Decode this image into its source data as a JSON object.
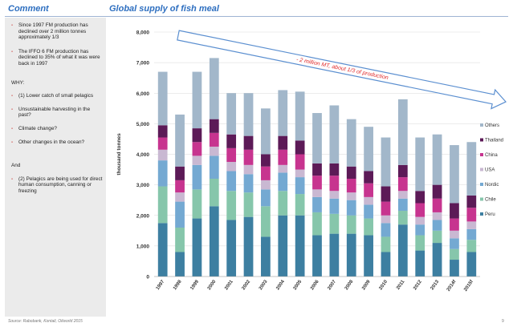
{
  "header": {
    "comment_title": "Comment",
    "chart_title": "Global supply of fish meal"
  },
  "sidebar": {
    "bullets": [
      {
        "text": "Since 1997 FM production has declined over 2 million tonnes approximately 1/3",
        "marker": "-"
      },
      {
        "text": "The IFFO 6 FM production has declined to 35% of what it was were back in 1997",
        "marker": "-"
      },
      {
        "text": "WHY:",
        "marker": ""
      },
      {
        "text": "(1) Lower catch of small pelagics",
        "marker": "-"
      },
      {
        "text": "Unsustainable harvesting in the past?",
        "marker": "-"
      },
      {
        "text": "Climate change?",
        "marker": "-"
      },
      {
        "text": "Other changes in the ocean?",
        "marker": "-"
      },
      {
        "text": "And",
        "marker": ""
      },
      {
        "text": "(2) Pelagics are being used for direct human consumption, canning or freezing",
        "marker": "-"
      }
    ]
  },
  "footer": {
    "source": "Source: Rabobank, Kontali, Oilworld 2015",
    "page": "9"
  },
  "chart_data": {
    "type": "bar",
    "stacked": true,
    "title": "Global supply of fish meal",
    "xlabel": "",
    "ylabel": "thousand tonnes",
    "ylim": [
      0,
      8000
    ],
    "yticks": [
      "0",
      "1,000",
      "2,000",
      "3,000",
      "4,000",
      "5,000",
      "6,000",
      "7,000",
      "8,000"
    ],
    "grid": true,
    "legend_position": "right",
    "categories": [
      "1997",
      "1998",
      "1999",
      "2000",
      "2001",
      "2002",
      "2003",
      "2004",
      "2005",
      "2006",
      "2007",
      "2008",
      "2009",
      "2010",
      "2011",
      "2012",
      "2013",
      "2014f",
      "2015f"
    ],
    "series": [
      {
        "name": "Peru",
        "color": "#3d7fa1",
        "values": [
          1750,
          800,
          1900,
          2300,
          1850,
          1950,
          1300,
          2000,
          2000,
          1350,
          1400,
          1400,
          1350,
          800,
          1700,
          850,
          1100,
          550,
          800
        ]
      },
      {
        "name": "Chile",
        "color": "#86c6ab",
        "values": [
          1200,
          800,
          950,
          900,
          950,
          800,
          1000,
          800,
          700,
          750,
          650,
          600,
          550,
          500,
          450,
          500,
          400,
          350,
          400
        ]
      },
      {
        "name": "Nordic",
        "color": "#74a9d2",
        "values": [
          850,
          850,
          800,
          750,
          650,
          600,
          550,
          600,
          550,
          500,
          500,
          500,
          450,
          450,
          400,
          350,
          350,
          350,
          350
        ]
      },
      {
        "name": "USA",
        "color": "#c9b8d2",
        "values": [
          350,
          300,
          300,
          300,
          300,
          300,
          300,
          250,
          250,
          250,
          250,
          250,
          250,
          250,
          250,
          250,
          250,
          250,
          250
        ]
      },
      {
        "name": "China",
        "color": "#c7348f",
        "values": [
          400,
          400,
          450,
          450,
          450,
          500,
          450,
          500,
          500,
          450,
          500,
          450,
          450,
          450,
          450,
          450,
          450,
          400,
          450
        ]
      },
      {
        "name": "Thailand",
        "color": "#5c1a57",
        "values": [
          400,
          450,
          450,
          450,
          450,
          450,
          400,
          450,
          450,
          400,
          400,
          400,
          400,
          500,
          400,
          400,
          450,
          500,
          400
        ]
      },
      {
        "name": "Others",
        "color": "#a2b7ca",
        "values": [
          1750,
          1700,
          1850,
          2000,
          1350,
          1400,
          1500,
          1500,
          1600,
          1650,
          1900,
          1550,
          1450,
          1600,
          2150,
          1750,
          1650,
          1900,
          1750
        ]
      }
    ],
    "annotation": {
      "text": "- 2 million MT, about 1/3 of production",
      "color": "#e02b2b",
      "arrow_color": "#5b8fd0"
    }
  }
}
